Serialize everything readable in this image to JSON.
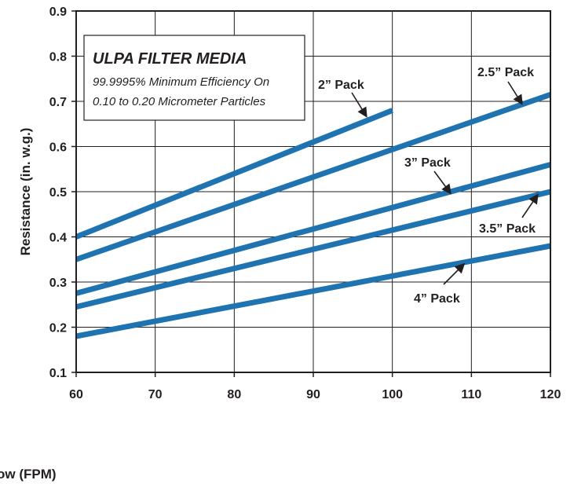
{
  "chart_data": {
    "type": "line",
    "title": "",
    "xlabel": "ow (FPM)",
    "ylabel": "Resistance (in. w.g.)",
    "xlim": [
      60,
      120
    ],
    "ylim": [
      0.1,
      0.9
    ],
    "x_ticks": [
      "60",
      "70",
      "80",
      "90",
      "100",
      "110",
      "120"
    ],
    "y_ticks": [
      "0.1",
      "0.2",
      "0.3",
      "0.4",
      "0.5",
      "0.6",
      "0.7",
      "0.8",
      "0.9"
    ],
    "grid": true,
    "line_color": "#1f73b0",
    "legend_box": {
      "title": "ULPA FILTER MEDIA",
      "line1": "99.9995% Minimum Efficiency On",
      "line2": "0.10 to 0.20 Micrometer Particles"
    },
    "series": [
      {
        "name": "2” Pack",
        "x": [
          60,
          100
        ],
        "y": [
          0.4,
          0.68
        ]
      },
      {
        "name": "2.5” Pack",
        "x": [
          60,
          120
        ],
        "y": [
          0.35,
          0.715
        ]
      },
      {
        "name": "3” Pack",
        "x": [
          60,
          120
        ],
        "y": [
          0.275,
          0.56
        ]
      },
      {
        "name": "3.5” Pack",
        "x": [
          60,
          120
        ],
        "y": [
          0.245,
          0.5
        ]
      },
      {
        "name": "4” Pack",
        "x": [
          60,
          120
        ],
        "y": [
          0.18,
          0.38
        ]
      }
    ]
  }
}
